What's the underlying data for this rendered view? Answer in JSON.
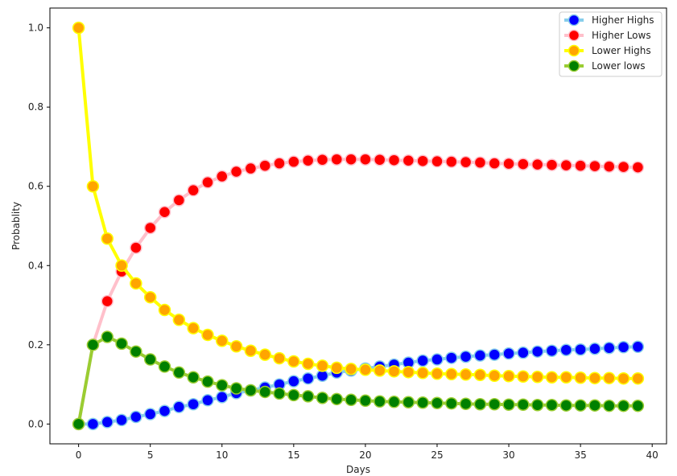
{
  "chart_data": {
    "type": "line",
    "title": "",
    "xlabel": "Days",
    "ylabel": "Probablity",
    "xlim": [
      -2,
      41
    ],
    "ylim": [
      -0.05,
      1.05
    ],
    "xticks": [
      0,
      5,
      10,
      15,
      20,
      25,
      30,
      35,
      40
    ],
    "yticks": [
      0.0,
      0.2,
      0.4,
      0.6,
      0.8,
      1.0
    ],
    "xtick_labels": [
      "0",
      "5",
      "10",
      "15",
      "20",
      "25",
      "30",
      "35",
      "40"
    ],
    "ytick_labels": [
      "0.0",
      "0.2",
      "0.4",
      "0.6",
      "0.8",
      "1.0"
    ],
    "grid": false,
    "legend_position": "top-right",
    "x": [
      0,
      1,
      2,
      3,
      4,
      5,
      6,
      7,
      8,
      9,
      10,
      11,
      12,
      13,
      14,
      15,
      16,
      17,
      18,
      19,
      20,
      21,
      22,
      23,
      24,
      25,
      26,
      27,
      28,
      29,
      30,
      31,
      32,
      33,
      34,
      35,
      36,
      37,
      38,
      39
    ],
    "series": [
      {
        "name": "Higher Highs",
        "line_color": "#87ceeb",
        "marker_color": "#0000ff",
        "values": [
          0.0,
          0.0,
          0.005,
          0.01,
          0.018,
          0.025,
          0.033,
          0.043,
          0.05,
          0.06,
          0.068,
          0.078,
          0.085,
          0.092,
          0.1,
          0.108,
          0.115,
          0.122,
          0.13,
          0.135,
          0.14,
          0.145,
          0.15,
          0.155,
          0.16,
          0.163,
          0.167,
          0.17,
          0.173,
          0.175,
          0.178,
          0.18,
          0.183,
          0.185,
          0.187,
          0.188,
          0.19,
          0.192,
          0.194,
          0.195
        ]
      },
      {
        "name": "Higher Lows",
        "line_color": "#ffc0cb",
        "marker_color": "#ff0000",
        "values": [
          0.0,
          0.2,
          0.31,
          0.385,
          0.445,
          0.495,
          0.535,
          0.565,
          0.59,
          0.61,
          0.625,
          0.637,
          0.645,
          0.652,
          0.658,
          0.662,
          0.665,
          0.667,
          0.668,
          0.668,
          0.668,
          0.667,
          0.666,
          0.665,
          0.664,
          0.663,
          0.662,
          0.661,
          0.66,
          0.658,
          0.657,
          0.656,
          0.655,
          0.654,
          0.653,
          0.652,
          0.651,
          0.65,
          0.649,
          0.648
        ]
      },
      {
        "name": "Lower Highs",
        "line_color": "#ffff00",
        "marker_color": "#ffa500",
        "values": [
          1.0,
          0.6,
          0.468,
          0.4,
          0.355,
          0.32,
          0.288,
          0.263,
          0.242,
          0.225,
          0.21,
          0.196,
          0.185,
          0.175,
          0.166,
          0.158,
          0.152,
          0.147,
          0.142,
          0.139,
          0.137,
          0.135,
          0.133,
          0.131,
          0.129,
          0.127,
          0.126,
          0.125,
          0.124,
          0.122,
          0.121,
          0.12,
          0.119,
          0.118,
          0.118,
          0.117,
          0.116,
          0.116,
          0.115,
          0.115
        ]
      },
      {
        "name": "Lower lows",
        "line_color": "#9acd32",
        "marker_color": "#008000",
        "values": [
          0.0,
          0.2,
          0.22,
          0.203,
          0.183,
          0.163,
          0.145,
          0.13,
          0.118,
          0.107,
          0.098,
          0.09,
          0.085,
          0.081,
          0.077,
          0.073,
          0.07,
          0.066,
          0.063,
          0.061,
          0.059,
          0.057,
          0.056,
          0.055,
          0.054,
          0.053,
          0.052,
          0.051,
          0.05,
          0.05,
          0.049,
          0.049,
          0.048,
          0.048,
          0.047,
          0.047,
          0.047,
          0.046,
          0.046,
          0.046
        ]
      }
    ]
  }
}
